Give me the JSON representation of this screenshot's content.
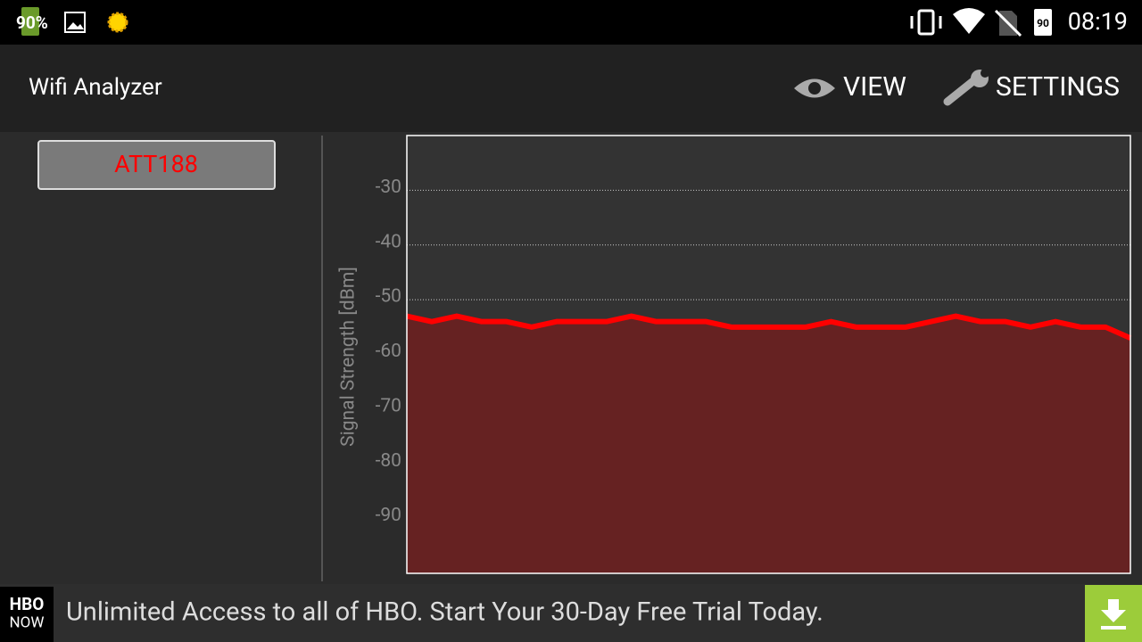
{
  "status_bar": {
    "battery": "90%",
    "battery_right": "90",
    "time": "08:19"
  },
  "app_bar": {
    "title": "Wifi Analyzer",
    "view": "VIEW",
    "settings": "SETTINGS"
  },
  "chart_data": {
    "type": "area-line",
    "ylabel": "Signal Strength [dBm]",
    "ylim": [
      -100,
      -20
    ],
    "yticks": [
      -30,
      -40,
      -50,
      -60,
      -70,
      -80,
      -90
    ],
    "grid": true,
    "series": [
      {
        "name": "ATT188",
        "color": "#ff0000",
        "fill": "#662222",
        "values": [
          -53,
          -54,
          -53,
          -54,
          -54,
          -55,
          -54,
          -54,
          -54,
          -53,
          -54,
          -54,
          -54,
          -55,
          -55,
          -55,
          -55,
          -54,
          -55,
          -55,
          -55,
          -54,
          -53,
          -54,
          -54,
          -55,
          -54,
          -55,
          -55,
          -57
        ]
      }
    ]
  },
  "ad": {
    "logo_top": "HBO",
    "logo_bottom": "NOW",
    "text": "Unlimited Access to all of HBO. Start Your 30-Day Free Trial Today."
  }
}
